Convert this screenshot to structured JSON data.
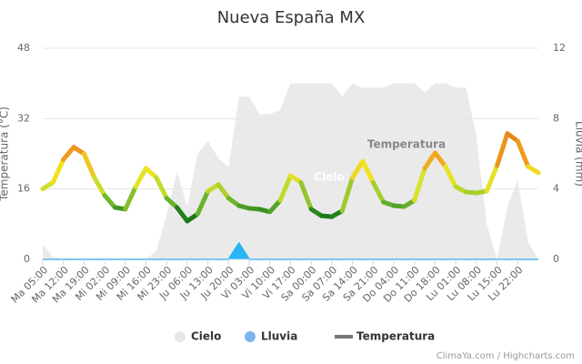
{
  "chart_data": {
    "type": "weather",
    "title": "Nueva España MX",
    "y_label": "Temperatura (°C)",
    "y2_label": "Lluvia (mm)",
    "categories": [
      "Ma 05:00",
      null,
      "Ma 12:00",
      null,
      "Ma 19:00",
      null,
      "Mi 02:00",
      null,
      "Mi 09:00",
      null,
      "Mi 16:00",
      null,
      "Mi 23:00",
      null,
      "Ju 06:00",
      null,
      "Ju 13:00",
      null,
      "Ju 20:00",
      null,
      "Vi 03:00",
      null,
      "Vi 10:00",
      null,
      "Vi 17:00",
      null,
      "Sa 00:00",
      null,
      "Sa 07:00",
      null,
      "Sa 14:00",
      null,
      "Sa 21:00",
      null,
      "Do 04:00",
      null,
      "Do 11:00",
      null,
      "Do 18:00",
      null,
      "Lu 01:00",
      null,
      "Lu 08:00",
      null,
      "Lu 15:00",
      null,
      "Lu 22:00",
      null,
      null
    ],
    "ylim": [
      0,
      48
    ],
    "yticks": [
      0,
      16,
      32,
      48
    ],
    "y2lim": [
      0,
      12
    ],
    "y2ticks": [
      0,
      4,
      8,
      12
    ],
    "grid": true,
    "series": [
      {
        "name": "Cielo",
        "kind": "area",
        "color": "#e6e6e6",
        "values": [
          3.5,
          0.5,
          0,
          0,
          0,
          0,
          0,
          0,
          0,
          0,
          0,
          2,
          10,
          20,
          12,
          24,
          27,
          23,
          21,
          37,
          37,
          33,
          33,
          34,
          40,
          40,
          40,
          40,
          40,
          37,
          40,
          39,
          39,
          39,
          40,
          40,
          40,
          38,
          40,
          40,
          39,
          39,
          28,
          8,
          0,
          12,
          18,
          4,
          0
        ]
      },
      {
        "name": "Lluvia",
        "kind": "area",
        "axis": "y2",
        "color": "#29b6f6",
        "legend_color": "#7cb5ec",
        "values": [
          0,
          0,
          0,
          0,
          0,
          0,
          0,
          0,
          0,
          0,
          0,
          0,
          0,
          0,
          0,
          0,
          0,
          0,
          0,
          0.9,
          0,
          0,
          0,
          0,
          0,
          0,
          0,
          0,
          0,
          0,
          0,
          0,
          0,
          0,
          0,
          0,
          0,
          0,
          0,
          0,
          0,
          0,
          0,
          0,
          0,
          0,
          0,
          0,
          0
        ]
      },
      {
        "name": "Temperatura",
        "kind": "line",
        "color": "#777777",
        "values": [
          16,
          17.5,
          22.7,
          25.5,
          24,
          18.6,
          14.5,
          11.8,
          11.4,
          16.5,
          20.7,
          18.6,
          13.9,
          11.8,
          8.7,
          10.3,
          15.5,
          17,
          13.9,
          12.2,
          11.6,
          11.4,
          10.8,
          13.4,
          19,
          17.5,
          11.4,
          9.9,
          9.7,
          11,
          18.6,
          22.3,
          17.5,
          13,
          12.2,
          12,
          13.4,
          20.7,
          24.2,
          21.1,
          16.5,
          15.3,
          15.1,
          15.5,
          21.3,
          28.6,
          26.9,
          21.1,
          19.7
        ]
      }
    ],
    "color_stops": [
      {
        "value": 10,
        "color": "#1a7a1a"
      },
      {
        "value": 13,
        "color": "#6cb52d"
      },
      {
        "value": 17,
        "color": "#d7e22a"
      },
      {
        "value": 20,
        "color": "#f2e21f"
      },
      {
        "value": 23,
        "color": "#f0a01e"
      },
      {
        "value": 27,
        "color": "#e8871a"
      }
    ],
    "annotations": [
      "Temperatura",
      "Cielo"
    ],
    "credit": "ClimaYa.com / Highcharts.com"
  }
}
